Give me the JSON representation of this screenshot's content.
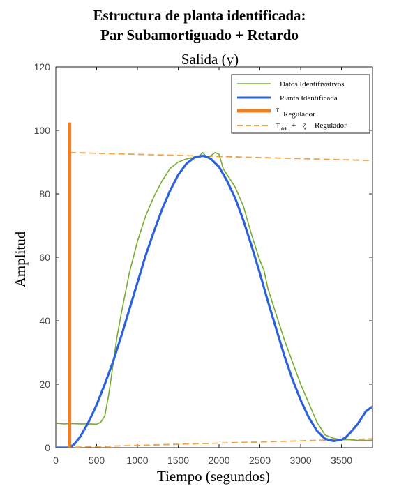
{
  "header": {
    "title_line1": "Estructura de planta identificada:",
    "title_line2": "Par Subamortiguado + Retardo"
  },
  "chart_data": {
    "type": "line",
    "title": "Salida (y)",
    "xlabel": "Tiempo (segundos)",
    "ylabel": "Amplitud",
    "xlim": [
      0,
      3880
    ],
    "ylim": [
      0,
      120
    ],
    "xticks": [
      "0",
      "500",
      "1000",
      "1500",
      "2000",
      "2500",
      "3000",
      "3500"
    ],
    "yticks": [
      "0",
      "20",
      "40",
      "60",
      "80",
      "100",
      "120"
    ],
    "grid": false,
    "legend_position": "top-right",
    "legend": {
      "datos": "Datos Identifivativos",
      "planta": "Planta Identificada",
      "tau_symbol": "τ",
      "tau_text": "Regulador",
      "tw_symbol": "T",
      "tw_sub": "ω",
      "tw_plus": "+",
      "zeta_symbol": "ζ",
      "tw_text": "Regulador"
    },
    "colors": {
      "datos": "#77ac30",
      "planta": "#2b62d9",
      "tau": "#f07d1e",
      "tw": "#eda44a"
    },
    "series": [
      {
        "key": "datos",
        "style": "solid-thin",
        "x": [
          0,
          100,
          200,
          300,
          400,
          500,
          550,
          600,
          650,
          700,
          750,
          800,
          900,
          1000,
          1100,
          1200,
          1300,
          1400,
          1500,
          1600,
          1700,
          1750,
          1800,
          1850,
          1900,
          1950,
          2000,
          2050,
          2100,
          2150,
          2200,
          2300,
          2400,
          2500,
          2550,
          2600,
          2650,
          2700,
          2750,
          2800,
          2900,
          3000,
          3100,
          3200,
          3300,
          3400,
          3500,
          3600,
          3700,
          3880
        ],
        "y": [
          7.7,
          7.5,
          7.6,
          7.5,
          7.5,
          7.4,
          8,
          10,
          17,
          26,
          35,
          42,
          55,
          65,
          73,
          79,
          84,
          88,
          90,
          91,
          91.5,
          91.8,
          93,
          91.5,
          92,
          93,
          92.5,
          88,
          86,
          84,
          82,
          76,
          67,
          59,
          56,
          50,
          46,
          42,
          38,
          34,
          27,
          20,
          14,
          8,
          4,
          3,
          2.5,
          2.5,
          2.3,
          2.3
        ]
      },
      {
        "key": "planta",
        "style": "solid-thick",
        "x": [
          0,
          170,
          230,
          300,
          400,
          500,
          600,
          700,
          800,
          900,
          1000,
          1100,
          1200,
          1300,
          1400,
          1500,
          1600,
          1700,
          1800,
          1850,
          1900,
          2000,
          2100,
          2200,
          2300,
          2400,
          2500,
          2600,
          2700,
          2800,
          2900,
          3000,
          3100,
          3200,
          3300,
          3400,
          3500,
          3550,
          3600,
          3700,
          3800,
          3880
        ],
        "y": [
          0,
          0,
          1.2,
          3.5,
          8,
          13.5,
          20,
          27,
          35,
          43.5,
          52,
          60.5,
          68,
          75,
          81,
          86,
          89.5,
          91.5,
          92,
          91.7,
          91,
          88.5,
          84,
          78.5,
          71.5,
          63.5,
          55,
          46,
          37.5,
          29,
          21.5,
          15,
          9.5,
          5.3,
          2.8,
          2.1,
          2.5,
          3.2,
          4.5,
          7.5,
          11.5,
          13
        ]
      },
      {
        "key": "tau",
        "style": "vertical-line",
        "x": [
          170,
          170
        ],
        "y": [
          0,
          102.5
        ]
      },
      {
        "key": "tw_upper",
        "style": "dashed",
        "x": [
          170,
          3880
        ],
        "y": [
          93,
          90.5
        ]
      },
      {
        "key": "tw_lower",
        "style": "dashed",
        "x": [
          0,
          3880
        ],
        "y": [
          0,
          2.8
        ]
      }
    ]
  }
}
